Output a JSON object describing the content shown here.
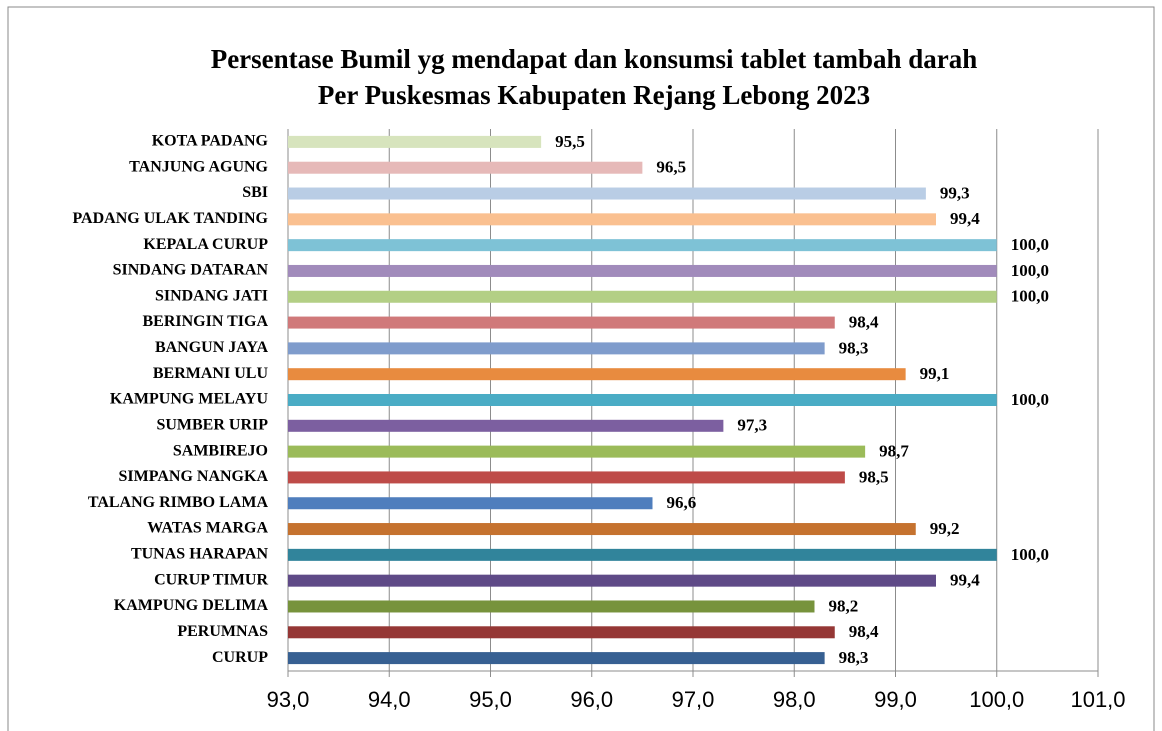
{
  "chart_data": {
    "type": "barh",
    "title": "Persentase Bumil yg mendapat dan konsumsi tablet tambah darah",
    "subtitle": "Per Puskesmas Kabupaten Rejang Lebong 2023",
    "categories": [
      "KOTA PADANG",
      "TANJUNG AGUNG",
      "SBI",
      "PADANG ULAK TANDING",
      "KEPALA CURUP",
      "SINDANG DATARAN",
      "SINDANG JATI",
      "BERINGIN TIGA",
      "BANGUN JAYA",
      "BERMANI ULU",
      "KAMPUNG MELAYU",
      "SUMBER URIP",
      "SAMBIREJO",
      "SIMPANG NANGKA",
      "TALANG RIMBO LAMA",
      "WATAS MARGA",
      "TUNAS HARAPAN",
      "CURUP TIMUR",
      "KAMPUNG DELIMA",
      "PERUMNAS",
      "CURUP"
    ],
    "values": [
      95.5,
      96.5,
      99.3,
      99.4,
      100.0,
      100.0,
      100.0,
      98.4,
      98.3,
      99.1,
      100.0,
      97.3,
      98.7,
      98.5,
      96.6,
      99.2,
      100.0,
      99.4,
      98.2,
      98.4,
      98.3
    ],
    "value_labels": [
      "95,5",
      "96,5",
      "99,3",
      "99,4",
      "100,0",
      "100,0",
      "100,0",
      "98,4",
      "98,3",
      "99,1",
      "100,0",
      "97,3",
      "98,7",
      "98,5",
      "96,6",
      "99,2",
      "100,0",
      "99,4",
      "98,2",
      "98,4",
      "98,3"
    ],
    "colors": [
      "#d7e4bd",
      "#e6b9b8",
      "#b9cde5",
      "#fac090",
      "#7ec2d6",
      "#a18bbb",
      "#b3cf85",
      "#d0797a",
      "#7f9ccc",
      "#e88b3f",
      "#4aacc5",
      "#7c5fa0",
      "#9bbb59",
      "#be4b48",
      "#4f7ebd",
      "#c5722f",
      "#31849b",
      "#5f4a87",
      "#77933c",
      "#953735",
      "#376092"
    ],
    "xlim": [
      93,
      101
    ],
    "xticks": [
      {
        "value": 93,
        "label": "93,0"
      },
      {
        "value": 94,
        "label": "94,0"
      },
      {
        "value": 95,
        "label": "95,0"
      },
      {
        "value": 96,
        "label": "96,0"
      },
      {
        "value": 97,
        "label": "97,0"
      },
      {
        "value": 98,
        "label": "98,0"
      },
      {
        "value": 99,
        "label": "99,0"
      },
      {
        "value": 100,
        "label": "100,0"
      },
      {
        "value": 101,
        "label": "101,0"
      }
    ],
    "grid": true
  }
}
